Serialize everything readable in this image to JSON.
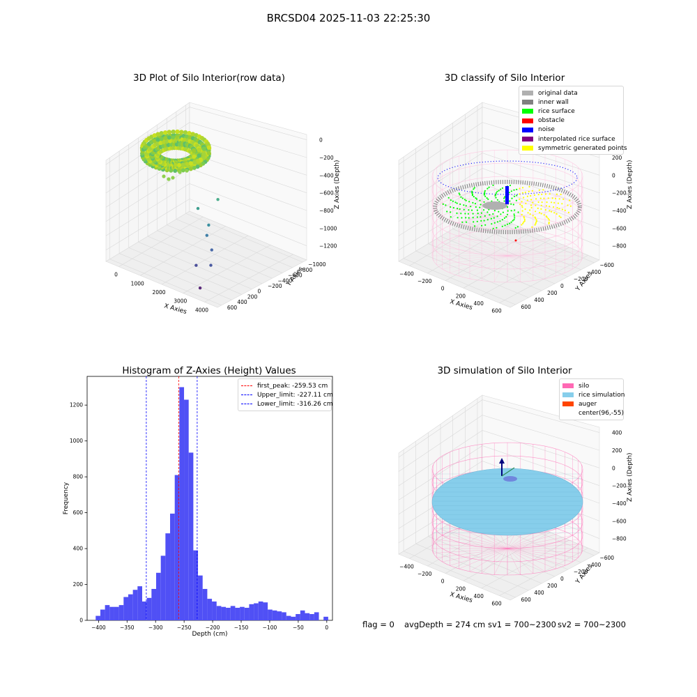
{
  "title": "BRCSD04 2025-11-03 22:25:30",
  "colors": {
    "grid": "#d9d9d9",
    "pane": "#efefef",
    "bars": "#5050f5",
    "silo": "#ff69b4",
    "rice": "#87ceeb",
    "auger": "#ff4500"
  },
  "chart_data": [
    {
      "type": "scatter",
      "title": "3D Plot of Silo Interior(row data)",
      "xlabel": "X Axies",
      "ylabel": "Y Axies",
      "zlabel": "Z Axies (Depth)",
      "x_ticks": [
        "0",
        "1000",
        "2000",
        "3000",
        "4000"
      ],
      "y_ticks": [
        "600",
        "400",
        "200",
        "0",
        "−200",
        "−400",
        "−600",
        "−800",
        "−1000"
      ],
      "z_ticks": [
        "0",
        "−200",
        "−400",
        "−600",
        "−800",
        "−1000",
        "−1200"
      ],
      "xlim": [
        -700,
        4300
      ],
      "ylim": [
        -1000,
        700
      ],
      "zlim": [
        -1300,
        100
      ],
      "outliers": [
        {
          "x": 1450,
          "y": 300,
          "z": -700
        },
        {
          "x": 1000,
          "y": 100,
          "z": -800
        },
        {
          "x": 1700,
          "y": 0,
          "z": -900
        },
        {
          "x": 1950,
          "y": -150,
          "z": -950
        },
        {
          "x": 2500,
          "y": -300,
          "z": -1020
        },
        {
          "x": 2900,
          "y": -500,
          "z": -1100
        },
        {
          "x": 2350,
          "y": -550,
          "z": -1150
        },
        {
          "x": 3300,
          "y": -900,
          "z": -1200
        }
      ]
    },
    {
      "type": "scatter",
      "title": "3D classify of Silo Interior",
      "xlabel": "X Axies",
      "ylabel": "Y Axies",
      "zlabel": "Z Axies (Depth)",
      "x_ticks": [
        "−400",
        "−200",
        "0",
        "200",
        "400",
        "600"
      ],
      "y_ticks": [
        "600",
        "400",
        "200",
        "0",
        "−200",
        "−400",
        "−600"
      ],
      "z_ticks": [
        "400",
        "200",
        "0",
        "−200",
        "−400",
        "−600",
        "−800"
      ],
      "xlim": [
        -500,
        700
      ],
      "ylim": [
        -700,
        600
      ],
      "zlim": [
        -900,
        400
      ],
      "legend": {
        "position": "upper-right",
        "items": [
          {
            "label": "original data",
            "color": "#b0b0b0"
          },
          {
            "label": "inner wall",
            "color": "#808080"
          },
          {
            "label": "rice surface",
            "color": "#00ff00"
          },
          {
            "label": "obstacle",
            "color": "#ff0000"
          },
          {
            "label": "noise",
            "color": "#0000ff"
          },
          {
            "label": "interpolated rice surface",
            "color": "#800080"
          },
          {
            "label": "symmetric generated points",
            "color": "#ffff00"
          }
        ]
      }
    },
    {
      "type": "bar",
      "title": "Histogram of Z-Axies (Height) Values",
      "xlabel": "Depth (cm)",
      "ylabel": "Frequency",
      "xlim": [
        -420,
        10
      ],
      "ylim": [
        0,
        1360
      ],
      "x_ticks": [
        "−400",
        "−350",
        "−300",
        "−250",
        "−200",
        "−150",
        "−100",
        "−50",
        "0"
      ],
      "x_tick_values": [
        -400,
        -350,
        -300,
        -250,
        -200,
        -150,
        -100,
        -50,
        0
      ],
      "y_ticks": [
        "0",
        "200",
        "400",
        "600",
        "800",
        "1000",
        "1200"
      ],
      "y_tick_values": [
        0,
        200,
        400,
        600,
        800,
        1000,
        1200
      ],
      "bin_start": -405,
      "bin_width": 8.15,
      "values": [
        25,
        60,
        85,
        75,
        75,
        85,
        130,
        145,
        170,
        190,
        105,
        125,
        175,
        265,
        360,
        485,
        595,
        810,
        1300,
        1230,
        935,
        390,
        250,
        175,
        120,
        105,
        80,
        75,
        70,
        80,
        70,
        75,
        70,
        90,
        95,
        105,
        100,
        60,
        55,
        50,
        45,
        25,
        20,
        35,
        55,
        40,
        35,
        45,
        0,
        20
      ],
      "lines": [
        {
          "label": "first_peak: -259.53 cm",
          "x": -259.53,
          "color": "#ff0000"
        },
        {
          "label": "Upper_limit: -227.11 cm",
          "x": -227.11,
          "color": "#0000ff"
        },
        {
          "label": "Lower_limit: -316.26 cm",
          "x": -316.26,
          "color": "#0000ff"
        }
      ]
    },
    {
      "type": "scatter",
      "title": "3D simulation of Silo Interior",
      "xlabel": "X Axies",
      "ylabel": "Y Axies",
      "zlabel": "Z Axies (Depth)",
      "x_ticks": [
        "−400",
        "−200",
        "0",
        "200",
        "400",
        "600"
      ],
      "y_ticks": [
        "600",
        "400",
        "200",
        "0",
        "−200",
        "−400",
        "−600"
      ],
      "z_ticks": [
        "400",
        "200",
        "0",
        "−200",
        "−400",
        "−600",
        "−800"
      ],
      "xlim": [
        -500,
        700
      ],
      "ylim": [
        -700,
        600
      ],
      "zlim": [
        -900,
        400
      ],
      "legend": {
        "position": "upper-right",
        "items": [
          {
            "label": "silo",
            "color": "#ff69b4"
          },
          {
            "label": "rice simulation",
            "color": "#87ceeb"
          },
          {
            "label": "auger",
            "color": "#ff4500"
          },
          {
            "label": "center(96,-55)",
            "color": ""
          }
        ]
      }
    }
  ],
  "footer": {
    "flag": "flag = 0",
    "avg_depth": "avgDepth = 274 cm",
    "sv1": "sv1 = 700~2300",
    "sv2": "sv2 = 700~2300"
  }
}
